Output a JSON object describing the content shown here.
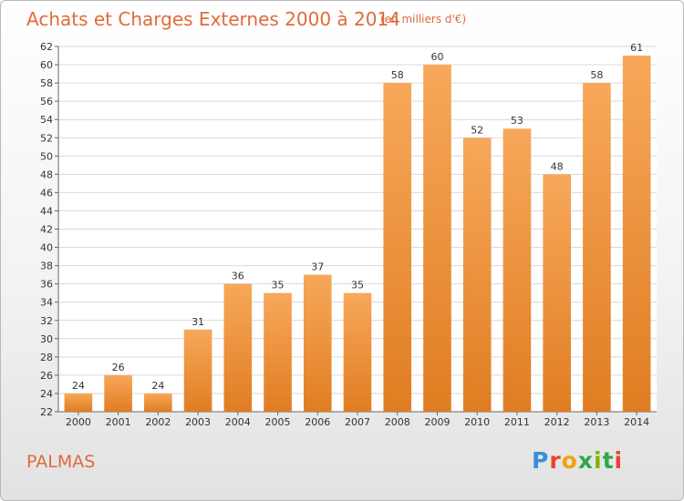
{
  "header": {
    "title": "Achats et Charges Externes 2000 à 2014",
    "unit": "(en milliers d'€)"
  },
  "footer": {
    "city": "PALMAS",
    "logo_text": "Proxiti"
  },
  "colors": {
    "bar_top": "#f7a85a",
    "bar_bottom": "#e07d22",
    "accent": "#e06a3c"
  },
  "chart_data": {
    "type": "bar",
    "title": "Achats et Charges Externes 2000 à 2014",
    "subtitle": "(en milliers d'€)",
    "categories": [
      "2000",
      "2001",
      "2002",
      "2003",
      "2004",
      "2005",
      "2006",
      "2007",
      "2008",
      "2009",
      "2010",
      "2011",
      "2012",
      "2013",
      "2014"
    ],
    "values": [
      24,
      26,
      24,
      31,
      36,
      35,
      37,
      35,
      58,
      60,
      52,
      53,
      48,
      58,
      61
    ],
    "ylim": [
      22,
      62
    ],
    "yticks": [
      22,
      24,
      26,
      28,
      30,
      32,
      34,
      36,
      38,
      40,
      42,
      44,
      46,
      48,
      50,
      52,
      54,
      56,
      58,
      60,
      62
    ],
    "grid": true,
    "legend": "none"
  }
}
